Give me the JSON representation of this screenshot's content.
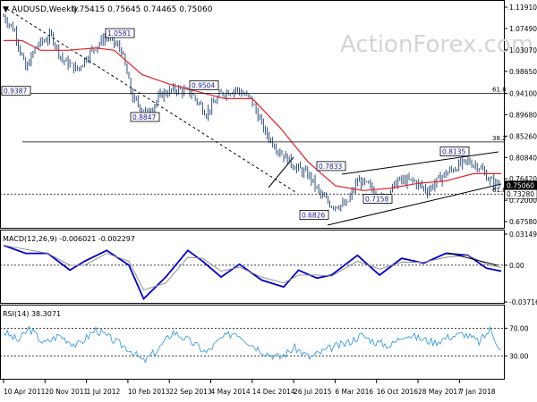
{
  "header": {
    "symbol_arrow": "▼",
    "title": "AUDUSD,Weekly",
    "ohlc": "0.75415 0.75645 0.74465 0.75060"
  },
  "watermark": "ActionForex.com",
  "colors": {
    "candle": "#1c3f6e",
    "ma": "#e8202a",
    "macd": "#0000cc",
    "signal": "#888888",
    "rsi": "#3c9ee0",
    "price_tag": "#000000"
  },
  "chart_data": [
    {
      "type": "candlestick",
      "panel": "price",
      "ylim": [
        0.6686,
        1.1191
      ],
      "y_ticks": [
        "1.11910",
        "1.07490",
        "1.03070",
        "0.98650",
        "0.94100",
        "0.89680",
        "0.85260",
        "0.80840",
        "0.76420",
        "0.72000",
        "0.67580"
      ],
      "x_ticks": [
        "10 Apr 2011",
        "20 Nov 2011",
        "1 Jul 2012",
        "10 Feb 2013",
        "22 Sep 2013",
        "4 May 2014",
        "14 Dec 2014",
        "26 Jul 2015",
        "6 Mar 2016",
        "16 Oct 2016",
        "28 May 2017",
        "7 Jan 2018"
      ],
      "close_path": [
        [
          0,
          1.1
        ],
        [
          6,
          1.07
        ],
        [
          12,
          0.99
        ],
        [
          18,
          1.04
        ],
        [
          26,
          1.06
        ],
        [
          32,
          1.01
        ],
        [
          40,
          0.99
        ],
        [
          48,
          1.03
        ],
        [
          56,
          1.06
        ],
        [
          64,
          1.03
        ],
        [
          70,
          0.93
        ],
        [
          78,
          0.9
        ],
        [
          86,
          0.94
        ],
        [
          94,
          0.95
        ],
        [
          102,
          0.94
        ],
        [
          110,
          0.9
        ],
        [
          118,
          0.94
        ],
        [
          126,
          0.95
        ],
        [
          134,
          0.93
        ],
        [
          142,
          0.86
        ],
        [
          150,
          0.82
        ],
        [
          158,
          0.79
        ],
        [
          166,
          0.77
        ],
        [
          172,
          0.73
        ],
        [
          178,
          0.71
        ],
        [
          186,
          0.71
        ],
        [
          192,
          0.76
        ],
        [
          198,
          0.75
        ],
        [
          206,
          0.72
        ],
        [
          214,
          0.76
        ],
        [
          222,
          0.76
        ],
        [
          230,
          0.74
        ],
        [
          238,
          0.77
        ],
        [
          246,
          0.79
        ],
        [
          252,
          0.8
        ],
        [
          258,
          0.79
        ],
        [
          264,
          0.76
        ],
        [
          270,
          0.7506
        ]
      ],
      "candle_range": [
        0.68,
        1.11
      ],
      "bars": 270,
      "overlay_ma_path": [
        [
          0,
          1.05
        ],
        [
          10,
          1.05
        ],
        [
          20,
          1.03
        ],
        [
          35,
          1.03
        ],
        [
          50,
          1.035
        ],
        [
          60,
          1.03
        ],
        [
          75,
          0.98
        ],
        [
          90,
          0.96
        ],
        [
          105,
          0.945
        ],
        [
          120,
          0.93
        ],
        [
          135,
          0.93
        ],
        [
          150,
          0.87
        ],
        [
          165,
          0.8
        ],
        [
          180,
          0.75
        ],
        [
          195,
          0.74
        ],
        [
          210,
          0.745
        ],
        [
          225,
          0.755
        ],
        [
          240,
          0.76
        ],
        [
          255,
          0.775
        ],
        [
          270,
          0.775
        ]
      ],
      "annotations": [
        {
          "label": "0.9387",
          "value": 0.9387
        },
        {
          "label": "1.0581",
          "value": 1.0581
        },
        {
          "label": "0.9504",
          "value": 0.9504
        },
        {
          "label": "0.8847",
          "value": 0.8847
        },
        {
          "label": "0.7833",
          "value": 0.7833
        },
        {
          "label": "0.6826",
          "value": 0.6826
        },
        {
          "label": "0.7158",
          "value": 0.7158
        },
        {
          "label": "0.8135",
          "value": 0.8135
        }
      ],
      "hlines": [
        {
          "label": "61.8",
          "value": 0.941
        },
        {
          "label": "38.2",
          "value": 0.8406
        },
        {
          "label": "61.8",
          "value": 0.7328
        }
      ],
      "price_tags": [
        {
          "label": "0.75060",
          "value": 0.7506
        },
        {
          "label": "0.73280",
          "value": 0.7328
        }
      ]
    },
    {
      "type": "line",
      "panel": "macd",
      "title": "MACD(12,26,9) -0.006021 -0.002297",
      "ylim": [
        -0.03716,
        0.03149
      ],
      "y_ticks": [
        "0.031493",
        "0.00",
        "-0.037164"
      ],
      "series": [
        {
          "name": "macd",
          "path": [
            [
              0,
              0.02
            ],
            [
              12,
              0.012
            ],
            [
              24,
              0.012
            ],
            [
              36,
              -0.005
            ],
            [
              44,
              0.004
            ],
            [
              56,
              0.015
            ],
            [
              68,
              0.0
            ],
            [
              76,
              -0.034
            ],
            [
              88,
              -0.012
            ],
            [
              100,
              0.015
            ],
            [
              108,
              0.004
            ],
            [
              118,
              -0.012
            ],
            [
              128,
              0.001
            ],
            [
              140,
              -0.015
            ],
            [
              152,
              -0.022
            ],
            [
              160,
              -0.005
            ],
            [
              170,
              -0.013
            ],
            [
              178,
              -0.01
            ],
            [
              192,
              0.01
            ],
            [
              204,
              -0.01
            ],
            [
              216,
              0.007
            ],
            [
              228,
              0.002
            ],
            [
              240,
              0.012
            ],
            [
              252,
              0.01
            ],
            [
              262,
              -0.003
            ],
            [
              270,
              -0.006
            ]
          ]
        },
        {
          "name": "signal",
          "path": [
            [
              0,
              0.02
            ],
            [
              12,
              0.016
            ],
            [
              24,
              0.012
            ],
            [
              36,
              0.0
            ],
            [
              44,
              0.0
            ],
            [
              56,
              0.012
            ],
            [
              68,
              0.004
            ],
            [
              76,
              -0.025
            ],
            [
              88,
              -0.018
            ],
            [
              100,
              0.008
            ],
            [
              108,
              0.007
            ],
            [
              118,
              -0.006
            ],
            [
              128,
              -0.002
            ],
            [
              140,
              -0.012
            ],
            [
              152,
              -0.018
            ],
            [
              160,
              -0.01
            ],
            [
              170,
              -0.01
            ],
            [
              178,
              -0.011
            ],
            [
              192,
              0.004
            ],
            [
              204,
              -0.004
            ],
            [
              216,
              0.003
            ],
            [
              228,
              0.003
            ],
            [
              240,
              0.008
            ],
            [
              252,
              0.01
            ],
            [
              262,
              0.001
            ],
            [
              270,
              -0.0023
            ]
          ]
        }
      ]
    },
    {
      "type": "line",
      "panel": "rsi",
      "title": "RSI(14) 38.3071",
      "ylim": [
        0,
        100
      ],
      "y_ticks": [
        "70.00",
        "30.00"
      ],
      "series": [
        {
          "name": "rsi",
          "path": [
            [
              0,
              65
            ],
            [
              8,
              52
            ],
            [
              14,
              70
            ],
            [
              22,
              48
            ],
            [
              30,
              60
            ],
            [
              40,
              45
            ],
            [
              50,
              68
            ],
            [
              60,
              52
            ],
            [
              68,
              40
            ],
            [
              76,
              22
            ],
            [
              84,
              40
            ],
            [
              92,
              65
            ],
            [
              102,
              50
            ],
            [
              110,
              35
            ],
            [
              118,
              55
            ],
            [
              126,
              65
            ],
            [
              134,
              48
            ],
            [
              142,
              35
            ],
            [
              150,
              28
            ],
            [
              158,
              42
            ],
            [
              166,
              28
            ],
            [
              172,
              35
            ],
            [
              178,
              42
            ],
            [
              186,
              48
            ],
            [
              194,
              60
            ],
            [
              202,
              50
            ],
            [
              210,
              45
            ],
            [
              218,
              62
            ],
            [
              226,
              55
            ],
            [
              234,
              50
            ],
            [
              242,
              58
            ],
            [
              250,
              62
            ],
            [
              258,
              50
            ],
            [
              264,
              68
            ],
            [
              270,
              38
            ]
          ]
        }
      ]
    }
  ]
}
